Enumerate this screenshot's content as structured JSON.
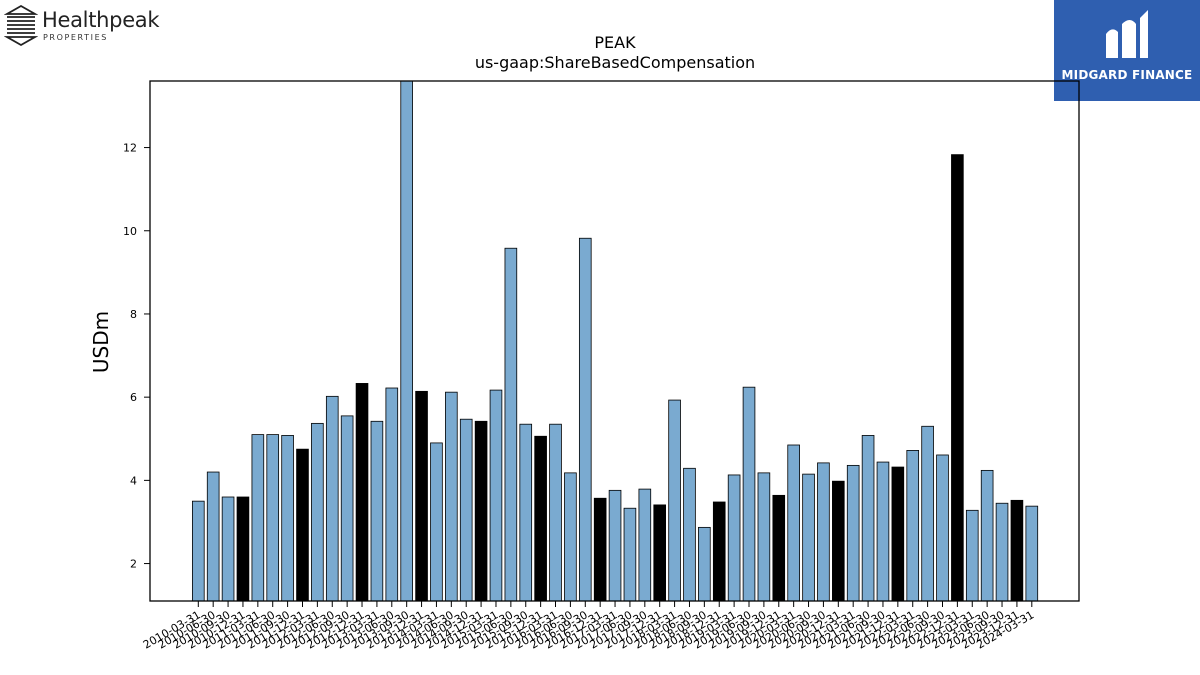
{
  "logos": {
    "left_name": "Healthpeak",
    "left_sub": "PROPERTIES",
    "right_name": "MIDGARD FINANCE"
  },
  "colors": {
    "bar_default": "#7aaad0",
    "bar_highlight": "#000000",
    "brand_blue": "#2f5fb0"
  },
  "chart_data": {
    "type": "bar",
    "title": "PEAK",
    "subtitle": "us-gaap:ShareBasedCompensation",
    "xlabel": "",
    "ylabel": "USDm",
    "ylim": [
      1.1,
      13.6
    ],
    "yticks": [
      2,
      4,
      6,
      8,
      10,
      12
    ],
    "grid": false,
    "categories": [
      "2010-03-31",
      "2010-06-30",
      "2010-09-30",
      "2010-12-31",
      "2011-03-31",
      "2011-06-30",
      "2011-09-30",
      "2011-12-31",
      "2012-03-31",
      "2012-06-30",
      "2012-09-30",
      "2012-12-31",
      "2013-03-31",
      "2013-06-30",
      "2013-09-30",
      "2013-12-31",
      "2014-03-31",
      "2014-06-30",
      "2014-09-30",
      "2014-12-31",
      "2015-03-31",
      "2015-06-30",
      "2015-09-30",
      "2015-12-31",
      "2016-03-31",
      "2016-06-30",
      "2016-09-30",
      "2016-12-31",
      "2017-03-31",
      "2017-06-30",
      "2017-09-30",
      "2017-12-31",
      "2018-03-31",
      "2018-06-30",
      "2018-09-30",
      "2018-12-31",
      "2019-03-31",
      "2019-06-30",
      "2019-09-30",
      "2019-12-31",
      "2020-03-31",
      "2020-06-30",
      "2020-09-30",
      "2020-12-31",
      "2021-03-31",
      "2021-06-30",
      "2021-09-30",
      "2021-12-31",
      "2022-03-31",
      "2022-06-30",
      "2022-09-30",
      "2022-12-31",
      "2023-03-31",
      "2023-06-30",
      "2023-09-30",
      "2023-12-31",
      "2024-03-31"
    ],
    "values": [
      3.5,
      4.2,
      3.6,
      3.6,
      5.1,
      5.1,
      5.08,
      4.75,
      5.37,
      6.02,
      5.55,
      6.33,
      5.42,
      6.22,
      13.6,
      6.14,
      4.9,
      6.12,
      5.47,
      5.42,
      6.17,
      9.58,
      5.35,
      5.06,
      5.35,
      4.18,
      9.82,
      3.57,
      3.76,
      3.33,
      3.79,
      3.41,
      5.93,
      4.29,
      2.87,
      3.48,
      4.13,
      6.24,
      4.18,
      3.64,
      4.85,
      4.15,
      4.42,
      3.98,
      4.36,
      5.08,
      4.44,
      4.32,
      4.72,
      5.3,
      4.61,
      11.83,
      3.28,
      4.24,
      3.45,
      3.52,
      3.38
    ],
    "highlight": [
      3,
      7,
      11,
      15,
      19,
      23,
      27,
      31,
      35,
      39,
      43,
      47,
      51,
      55
    ]
  }
}
